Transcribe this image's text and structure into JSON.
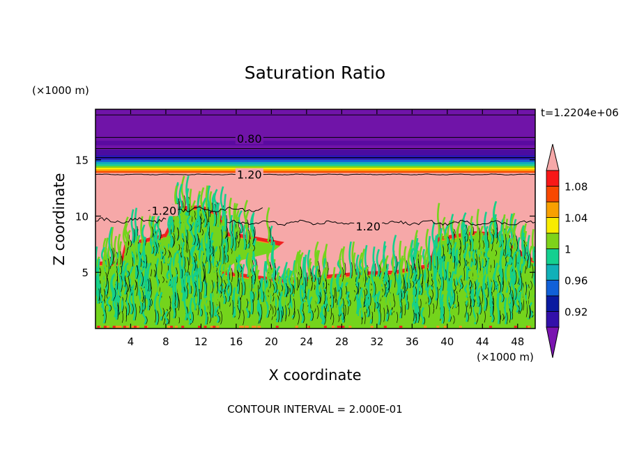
{
  "chart_data": {
    "type": "heatmap",
    "title": "Saturation Ratio",
    "xlabel": "X coordinate",
    "ylabel": "Z coordinate",
    "x_unit": "(×1000 m)",
    "y_unit": "(×1000 m)",
    "time_label": "t=1.2204e+06",
    "footer": "CONTOUR INTERVAL = 2.000E-01",
    "xlim": [
      0,
      50
    ],
    "ylim": [
      0,
      19.5
    ],
    "x_ticks": [
      4,
      8,
      12,
      16,
      20,
      24,
      28,
      32,
      36,
      40,
      44,
      48
    ],
    "y_ticks": [
      5,
      10,
      15
    ],
    "contour_labels": [
      {
        "text": "0.80",
        "x": 17.5,
        "y": 16.9
      },
      {
        "text": "1.20",
        "x": 17.5,
        "y": 13.7
      },
      {
        "text": "1.20",
        "x": 7.8,
        "y": 10.5
      },
      {
        "text": "1.20",
        "x": 31,
        "y": 9.1
      }
    ],
    "colorbar": {
      "levels": [
        0.9,
        0.92,
        0.94,
        0.96,
        0.98,
        1.0,
        1.02,
        1.04,
        1.06,
        1.08,
        1.1
      ],
      "colors": [
        "#6a0aa8",
        "#3311aa",
        "#0a1aa0",
        "#1060d8",
        "#10b0b8",
        "#14d090",
        "#7ed21a",
        "#f8ec00",
        "#f8a000",
        "#f84800",
        "#f81818"
      ],
      "under_color": "#7a14b0",
      "over_color": "#f6a8a8",
      "tick_labels": [
        "0.92",
        "0.96",
        "1",
        "1.04",
        "1.08"
      ],
      "tick_values": [
        0.92,
        0.96,
        1.0,
        1.04,
        1.08
      ]
    },
    "colors": {
      "top_layer": "#7014a8",
      "top_layer_dark": "#5a0aa0",
      "supersaturated": "#f6a8a8",
      "cloud_green": "#74d41c",
      "cloud_teal": "#14d08c",
      "edge_red": "#f02020",
      "edge_orange": "#f89020"
    }
  }
}
